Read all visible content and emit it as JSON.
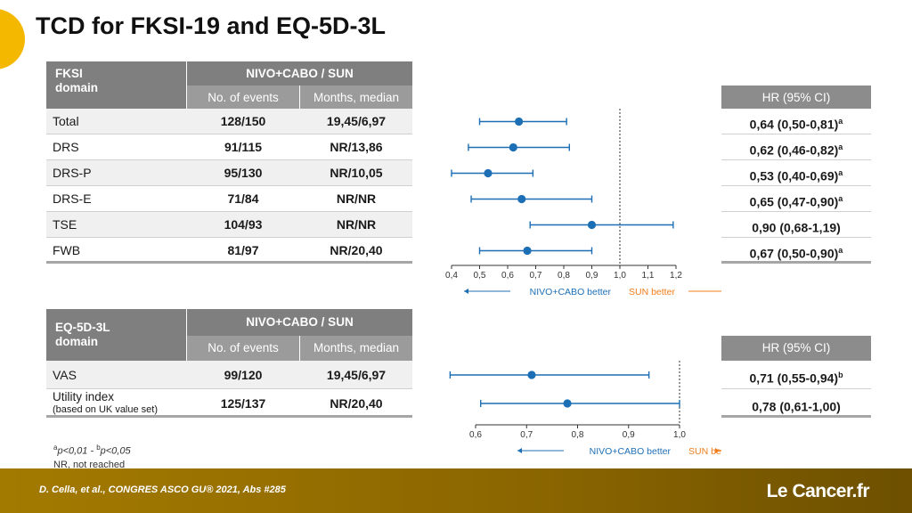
{
  "title": "TCD for FKSI-19 and EQ-5D-3L",
  "colors": {
    "marker": "#1d6fb5",
    "sun": "#f07d1a",
    "accent": "#f5b800",
    "footer": "#8a6500"
  },
  "fksi": {
    "domain_label_1": "FKSI",
    "domain_label_2": "domain",
    "group_label": "NIVO+CABO / SUN",
    "col_events": "No. of events",
    "col_months": "Months, median",
    "hr_header": "HR (95% CI)",
    "rows": [
      {
        "label": "Total",
        "events": "128/150",
        "months": "19,45/6,97",
        "hr": "0,64 (0,50-0,81)",
        "sup": "a"
      },
      {
        "label": "DRS",
        "events": "91/115",
        "months": "NR/13,86",
        "hr": "0,62 (0,46-0,82)",
        "sup": "a"
      },
      {
        "label": "DRS-P",
        "events": "95/130",
        "months": "NR/10,05",
        "hr": "0,53 (0,40-0,69)",
        "sup": "a"
      },
      {
        "label": "DRS-E",
        "events": "71/84",
        "months": "NR/NR",
        "hr": "0,65 (0,47-0,90)",
        "sup": "a"
      },
      {
        "label": "TSE",
        "events": "104/93",
        "months": "NR/NR",
        "hr": "0,90 (0,68-1,19)",
        "sup": ""
      },
      {
        "label": "FWB",
        "events": "81/97",
        "months": "NR/20,40",
        "hr": "0,67 (0,50-0,90)",
        "sup": "a"
      }
    ],
    "nivo_better": "NIVO+CABO better",
    "sun_better": "SUN better"
  },
  "eq": {
    "domain_label_1": "EQ-5D-3L",
    "domain_label_2": "domain",
    "group_label": "NIVO+CABO / SUN",
    "col_events": "No. of events",
    "col_months": "Months, median",
    "hr_header": "HR (95% CI)",
    "rows": [
      {
        "label": "VAS",
        "label2": "",
        "events": "99/120",
        "months": "19,45/6,97",
        "hr": "0,71 (0,55-0,94)",
        "sup": "b"
      },
      {
        "label": "Utility index",
        "label2": "(based on UK value set)",
        "events": "125/137",
        "months": "NR/20,40",
        "hr": "0,78 (0,61-1,00)",
        "sup": ""
      }
    ],
    "nivo_better": "NIVO+CABO better",
    "sun_better": "SUN better"
  },
  "notes": {
    "line1_sup_a": "a",
    "line1_a": "p<0,01 - ",
    "line1_sup_b": "b",
    "line1_b": "p<0,05",
    "line2": "NR, not reached"
  },
  "footer": {
    "reference": "D. Cella, et al., CONGRES ASCO GU® 2021, Abs #285",
    "logo": "Le Cancer.fr"
  },
  "chart_data": [
    {
      "type": "scatter",
      "x_scale": "linear",
      "xlim": [
        0.4,
        1.2
      ],
      "ticks": [
        "0,4",
        "0,5",
        "0,6",
        "0,7",
        "0,8",
        "0,9",
        "1,0",
        "1,1",
        "1,2"
      ],
      "tick_values": [
        0.4,
        0.5,
        0.6,
        0.7,
        0.8,
        0.9,
        1.0,
        1.1,
        1.2
      ],
      "reference_line": 1.0,
      "points": [
        {
          "y": "Total",
          "hr": 0.64,
          "lo": 0.5,
          "hi": 0.81
        },
        {
          "y": "DRS",
          "hr": 0.62,
          "lo": 0.46,
          "hi": 0.82
        },
        {
          "y": "DRS-P",
          "hr": 0.53,
          "lo": 0.4,
          "hi": 0.69
        },
        {
          "y": "DRS-E",
          "hr": 0.65,
          "lo": 0.47,
          "hi": 0.9
        },
        {
          "y": "TSE",
          "hr": 0.9,
          "lo": 0.68,
          "hi": 1.19
        },
        {
          "y": "FWB",
          "hr": 0.67,
          "lo": 0.5,
          "hi": 0.9
        }
      ]
    },
    {
      "type": "scatter",
      "x_scale": "linear",
      "xlim": [
        0.6,
        1.0
      ],
      "ticks": [
        "0,6",
        "0,7",
        "0,8",
        "0,9",
        "1,0"
      ],
      "tick_values": [
        0.6,
        0.7,
        0.8,
        0.9,
        1.0
      ],
      "reference_line": 1.0,
      "points": [
        {
          "y": "VAS",
          "hr": 0.71,
          "lo": 0.55,
          "hi": 0.94
        },
        {
          "y": "Utility index",
          "hr": 0.78,
          "lo": 0.61,
          "hi": 1.0
        }
      ]
    }
  ]
}
